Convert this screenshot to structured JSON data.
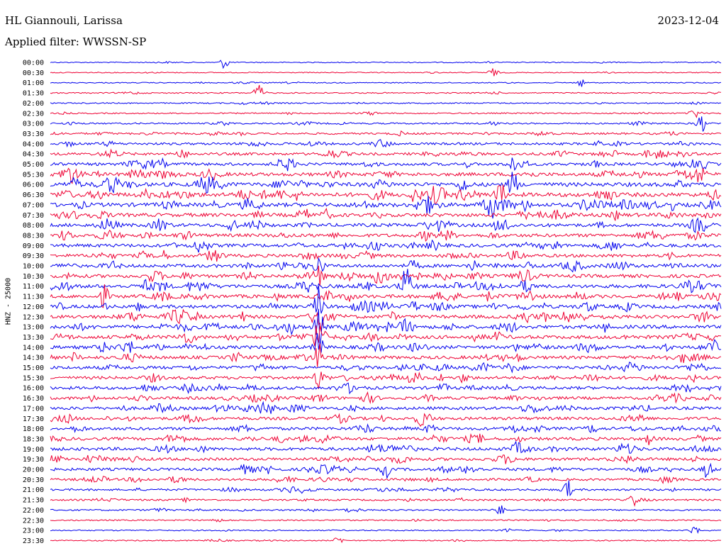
{
  "header": {
    "station": "HL Giannouli, Larissa",
    "filter": "Applied filter: WWSSN-SP",
    "date": "2023-12-04"
  },
  "chart_data": {
    "type": "helicorder",
    "ylabel": "HNZ - 25000",
    "trace_colors": [
      "#0000ee",
      "#ee0033"
    ],
    "rows": [
      "00:00",
      "00:30",
      "01:00",
      "01:30",
      "02:00",
      "02:30",
      "03:00",
      "03:30",
      "04:00",
      "04:30",
      "05:00",
      "05:30",
      "06:00",
      "06:30",
      "07:00",
      "07:30",
      "08:00",
      "08:30",
      "09:00",
      "09:30",
      "10:00",
      "10:30",
      "11:00",
      "11:30",
      "12:00",
      "12:30",
      "13:00",
      "13:30",
      "14:00",
      "14:30",
      "15:00",
      "15:30",
      "16:00",
      "16:30",
      "17:00",
      "17:30",
      "18:00",
      "18:30",
      "19:00",
      "19:30",
      "20:00",
      "20:30",
      "21:00",
      "21:30",
      "22:00",
      "22:30",
      "23:00",
      "23:30"
    ],
    "noise_level": [
      0.6,
      0.5,
      0.6,
      0.8,
      0.9,
      1.0,
      1.3,
      1.7,
      2.3,
      2.7,
      3.0,
      3.6,
      4.2,
      4.4,
      4.2,
      3.8,
      3.6,
      3.4,
      3.5,
      3.3,
      3.4,
      3.6,
      3.9,
      3.7,
      3.6,
      3.6,
      3.8,
      3.7,
      3.5,
      3.3,
      3.2,
      3.0,
      3.1,
      3.0,
      3.1,
      3.0,
      3.0,
      3.1,
      3.3,
      3.0,
      2.8,
      2.2,
      1.8,
      1.5,
      1.2,
      1.0,
      0.8,
      0.7
    ],
    "events": [
      {
        "row": 0,
        "t": 0.26,
        "amp": 9
      },
      {
        "row": 1,
        "t": 0.66,
        "amp": 6
      },
      {
        "row": 2,
        "t": 0.79,
        "amp": 6
      },
      {
        "row": 3,
        "t": 0.31,
        "amp": 12
      },
      {
        "row": 5,
        "t": 0.96,
        "amp": 7
      },
      {
        "row": 6,
        "t": 0.97,
        "amp": 14
      },
      {
        "row": 10,
        "t": 0.69,
        "amp": 16
      },
      {
        "row": 11,
        "t": 0.97,
        "amp": 16
      },
      {
        "row": 12,
        "t": 0.69,
        "amp": 22
      },
      {
        "row": 13,
        "t": 0.67,
        "amp": 24
      },
      {
        "row": 14,
        "t": 0.66,
        "amp": 16
      },
      {
        "row": 16,
        "t": 0.27,
        "amp": 14
      },
      {
        "row": 20,
        "t": 0.4,
        "amp": 18
      },
      {
        "row": 21,
        "t": 0.4,
        "amp": 20
      },
      {
        "row": 22,
        "t": 0.53,
        "amp": 20
      },
      {
        "row": 23,
        "t": 0.08,
        "amp": 16
      },
      {
        "row": 24,
        "t": 0.4,
        "amp": 26
      },
      {
        "row": 25,
        "t": 0.4,
        "amp": 34
      },
      {
        "row": 26,
        "t": 0.4,
        "amp": 34
      },
      {
        "row": 27,
        "t": 0.4,
        "amp": 26
      },
      {
        "row": 28,
        "t": 0.4,
        "amp": 24
      },
      {
        "row": 29,
        "t": 0.4,
        "amp": 20
      },
      {
        "row": 31,
        "t": 0.4,
        "amp": 14
      },
      {
        "row": 40,
        "t": 0.5,
        "amp": 12
      },
      {
        "row": 40,
        "t": 0.98,
        "amp": 14
      },
      {
        "row": 42,
        "t": 0.77,
        "amp": 16
      },
      {
        "row": 43,
        "t": 0.87,
        "amp": 10
      },
      {
        "row": 44,
        "t": 0.67,
        "amp": 8
      },
      {
        "row": 46,
        "t": 0.96,
        "amp": 7
      },
      {
        "row": 47,
        "t": 0.43,
        "amp": 6
      }
    ]
  }
}
